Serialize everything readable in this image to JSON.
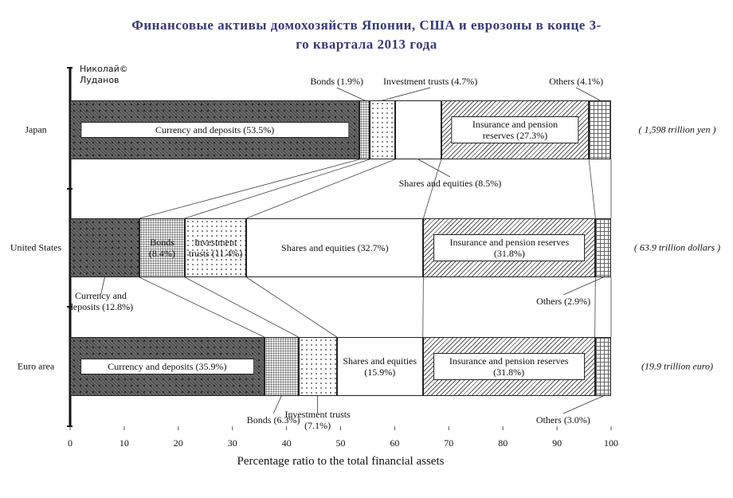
{
  "title": "Финансовые активы домохозяйств Японии, США и еврозоны в конце 3-го квартала 2013 года",
  "author": [
    "Николай©",
    "Луданов"
  ],
  "chart_data": {
    "type": "bar",
    "orientation": "horizontal",
    "stacked": true,
    "categories": [
      "Japan",
      "United States",
      "Euro area"
    ],
    "category_notes": [
      "( 1,598 trillion yen )",
      "( 63.9 trillion dollars )",
      "(19.9 trillion euro)"
    ],
    "series": [
      {
        "name": "Currency and deposits",
        "values": [
          53.5,
          12.8,
          35.9
        ],
        "value_labels": [
          "(53.5%)",
          "(12.8%)",
          "(35.9%)"
        ]
      },
      {
        "name": "Bonds",
        "values": [
          1.9,
          8.4,
          6.3
        ],
        "value_labels": [
          "(1.9%)",
          "(8.4%)",
          "(6.3%)"
        ]
      },
      {
        "name": "Investment trusts",
        "values": [
          4.7,
          11.4,
          7.1
        ],
        "value_labels": [
          "(4.7%)",
          "(11.4%)",
          "(7.1%)"
        ]
      },
      {
        "name": "Shares and equities",
        "values": [
          8.5,
          32.7,
          15.9
        ],
        "value_labels": [
          "(8.5%)",
          "(32.7%)",
          "(15.9%)"
        ]
      },
      {
        "name": "Insurance and pension reserves",
        "values": [
          27.3,
          31.8,
          31.8
        ],
        "value_labels": [
          "(27.3%)",
          "(31.8%)",
          "(31.8%)"
        ]
      },
      {
        "name": "Others",
        "values": [
          4.1,
          2.9,
          3.0
        ],
        "value_labels": [
          "(4.1%)",
          "(2.9%)",
          "(3.0%)"
        ]
      }
    ],
    "xlim": [
      0,
      100
    ],
    "xticks": [
      0,
      10,
      20,
      30,
      40,
      50,
      60,
      70,
      80,
      90,
      100
    ],
    "xlabel": "Percentage ratio to the total financial assets"
  }
}
